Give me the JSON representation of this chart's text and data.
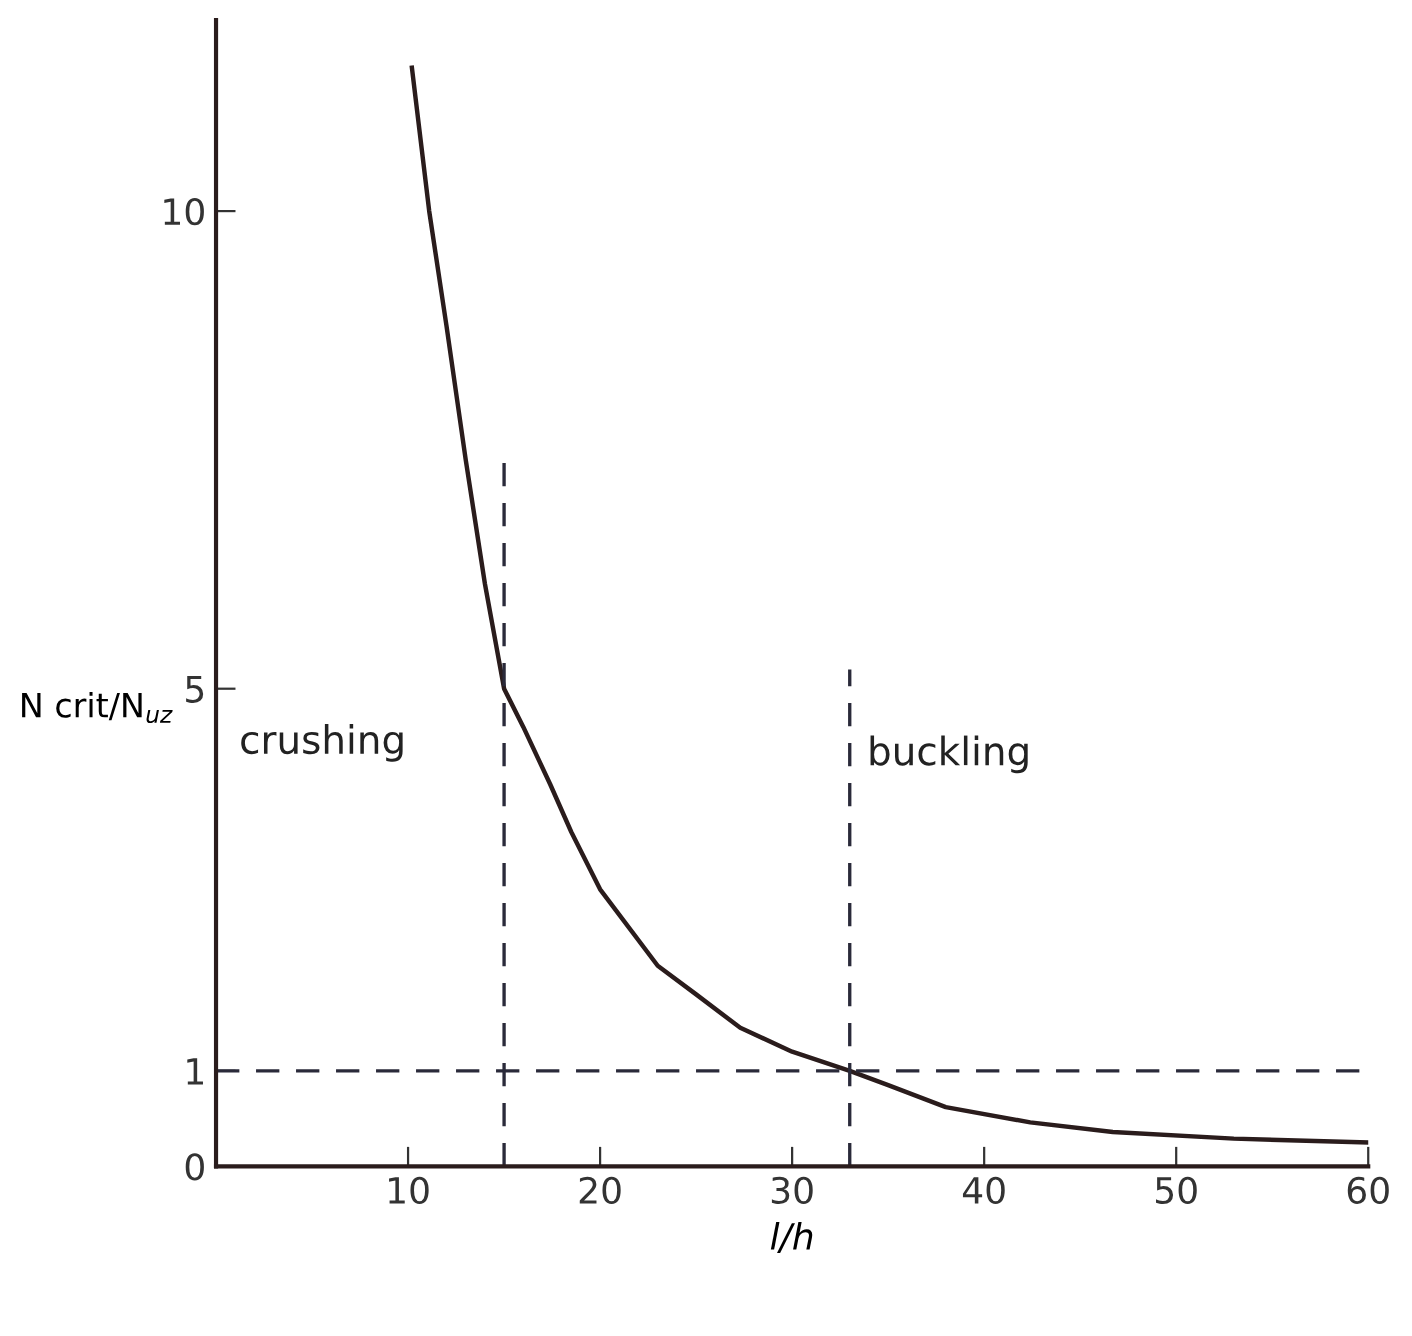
{
  "chart_data": {
    "type": "line",
    "xlabel": "l/h",
    "ylabel": "N crit/N$_{uz}$",
    "series": [
      {
        "color": "#2a1c1c",
        "x": [
          10.2,
          11.1,
          12,
          13,
          14,
          15,
          16,
          17.4,
          18.5,
          20,
          23,
          25,
          27.3,
          30,
          33,
          35,
          38,
          42.4,
          46.7,
          53,
          60
        ],
        "values": [
          11.5,
          10,
          8.8,
          7.4,
          6.1,
          5.0,
          4.6,
          4.0,
          3.5,
          2.9,
          2.1,
          1.8,
          1.45,
          1.2,
          1.0,
          0.85,
          0.62,
          0.46,
          0.36,
          0.29,
          0.25
        ]
      },
      {
        "color": "#2a2a3a",
        "line_style": "dashed",
        "x": [
          0,
          60
        ],
        "values": [
          1,
          1
        ]
      },
      {
        "color": "#2a2a3a",
        "line_style": "dashed",
        "x": [
          15,
          15
        ],
        "values": [
          0,
          7.4
        ]
      },
      {
        "color": "#2a2a3a",
        "line_style": "dashed",
        "x": [
          33,
          33
        ],
        "values": [
          0,
          5.2
        ]
      }
    ],
    "xlim": [
      0,
      60
    ],
    "ylim": [
      0,
      12
    ],
    "xticks": [
      10,
      20,
      30,
      40,
      50,
      60
    ],
    "yticks": [
      0,
      1,
      5,
      10
    ],
    "grid": false,
    "legend": false,
    "marker": "none",
    "line_style": "solid",
    "annotations": [
      "crushing",
      "buckling"
    ]
  }
}
